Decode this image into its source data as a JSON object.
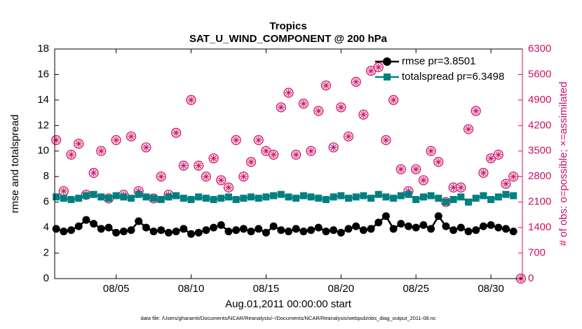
{
  "chart_data": {
    "type": "line",
    "title": "Tropics",
    "subtitle": "SAT_U_WIND_COMPONENT @ 200 hPa",
    "xlabel": "Aug.01,2011 00:00:00 start",
    "ylabel": "rmse and totalspread",
    "y2label": "# of obs: o=possible; ×=assimilated",
    "footnote": "data file: /Users/gharamti/Documents/NCAR/Reanalysis/~/Documents/NCAR/Reanalysis/webpub/obs_diag_output_2011-08.nc",
    "legend": "northeast",
    "xlim": [
      0.9,
      32.1
    ],
    "xticks": [
      {
        "value": 5,
        "label": "08/05"
      },
      {
        "value": 10,
        "label": "08/10"
      },
      {
        "value": 15,
        "label": "08/15"
      },
      {
        "value": 20,
        "label": "08/20"
      },
      {
        "value": 25,
        "label": "08/25"
      },
      {
        "value": 30,
        "label": "08/30"
      }
    ],
    "ylim": [
      0,
      18
    ],
    "yticks": [
      0,
      2,
      4,
      6,
      8,
      10,
      12,
      14,
      16,
      18
    ],
    "y2lim": [
      0,
      6300
    ],
    "y2ticks": [
      0,
      700,
      1400,
      2100,
      2800,
      3500,
      4200,
      4900,
      5600,
      6300
    ],
    "y2color": "#cc1166",
    "x": [
      1,
      1.5,
      2,
      2.5,
      3,
      3.5,
      4,
      4.5,
      5,
      5.5,
      6,
      6.5,
      7,
      7.5,
      8,
      8.5,
      9,
      9.5,
      10,
      10.5,
      11,
      11.5,
      12,
      12.5,
      13,
      13.5,
      14,
      14.5,
      15,
      15.5,
      16,
      16.5,
      17,
      17.5,
      18,
      18.5,
      19,
      19.5,
      20,
      20.5,
      21,
      21.5,
      22,
      22.5,
      23,
      23.5,
      24,
      24.5,
      25,
      25.5,
      26,
      26.5,
      27,
      27.5,
      28,
      28.5,
      29,
      29.5,
      30,
      30.5,
      31,
      31.5,
      32
    ],
    "series": [
      {
        "name": "rmse pr=3.8501",
        "color": "#000000",
        "marker": "circle",
        "values": [
          3.9,
          3.7,
          3.8,
          4.1,
          4.6,
          4.3,
          3.9,
          4.0,
          3.6,
          3.7,
          3.8,
          4.5,
          4.0,
          3.7,
          3.8,
          3.6,
          3.7,
          3.9,
          3.5,
          3.6,
          3.8,
          4.0,
          4.2,
          3.7,
          3.8,
          3.9,
          3.7,
          3.9,
          3.6,
          4.1,
          3.8,
          3.7,
          3.9,
          3.7,
          3.8,
          4.0,
          3.7,
          3.8,
          3.6,
          3.9,
          4.1,
          3.8,
          3.9,
          4.4,
          4.9,
          3.9,
          4.3,
          4.1,
          4.0,
          4.2,
          3.9,
          4.9,
          4.1,
          3.8,
          4.0,
          3.7,
          3.8,
          4.1,
          4.2,
          4.0,
          3.9,
          3.7,
          null
        ]
      },
      {
        "name": "totalspread pr=6.3498",
        "color": "#008080",
        "marker": "square",
        "values": [
          6.4,
          6.3,
          6.2,
          6.3,
          6.5,
          6.6,
          6.4,
          6.3,
          6.5,
          6.4,
          6.3,
          6.6,
          6.4,
          6.3,
          6.2,
          6.4,
          6.5,
          6.3,
          6.2,
          6.4,
          6.3,
          6.2,
          6.3,
          6.4,
          6.2,
          6.3,
          6.4,
          6.3,
          6.4,
          6.5,
          6.6,
          6.4,
          6.3,
          6.5,
          6.4,
          6.3,
          6.2,
          6.4,
          6.5,
          6.3,
          6.4,
          6.5,
          6.3,
          6.6,
          6.4,
          6.3,
          6.5,
          6.6,
          6.2,
          6.4,
          6.5,
          6.3,
          6.0,
          6.2,
          6.4,
          6.0,
          6.3,
          6.5,
          6.2,
          6.4,
          6.6,
          6.5,
          null
        ]
      }
    ],
    "y2_series": [
      {
        "marker": "o",
        "color": "#cc1166",
        "values": [
          3800,
          2400,
          3400,
          3700,
          2300,
          2900,
          3500,
          2200,
          3800,
          2300,
          3900,
          2400,
          3600,
          2200,
          2800,
          2300,
          4000,
          3100,
          4900,
          3100,
          2800,
          3300,
          2700,
          2500,
          3800,
          2800,
          3200,
          3800,
          3500,
          3400,
          4700,
          5100,
          3400,
          4800,
          3500,
          4600,
          5300,
          3600,
          4700,
          3900,
          5400,
          4500,
          5700,
          5800,
          3800,
          4900,
          3000,
          2400,
          3000,
          2700,
          3500,
          3200,
          2100,
          2500,
          2500,
          4100,
          4600,
          2900,
          3300,
          3400,
          2600,
          2800,
          0
        ]
      },
      {
        "marker": "*",
        "color": "#cc1166",
        "values": [
          3800,
          2400,
          3400,
          3700,
          2300,
          2900,
          3500,
          2200,
          3800,
          2300,
          3900,
          2400,
          3600,
          2200,
          2800,
          2300,
          4000,
          3100,
          4900,
          3100,
          2800,
          3300,
          2700,
          2500,
          3800,
          2800,
          3200,
          3800,
          3500,
          3400,
          4700,
          5100,
          3400,
          4800,
          3500,
          4600,
          5300,
          3600,
          4700,
          3900,
          5400,
          4500,
          5700,
          5800,
          3800,
          4900,
          3000,
          2400,
          3000,
          2700,
          3500,
          3200,
          2100,
          2500,
          2500,
          4100,
          4600,
          2900,
          3300,
          3400,
          2600,
          2800,
          0
        ]
      }
    ]
  }
}
